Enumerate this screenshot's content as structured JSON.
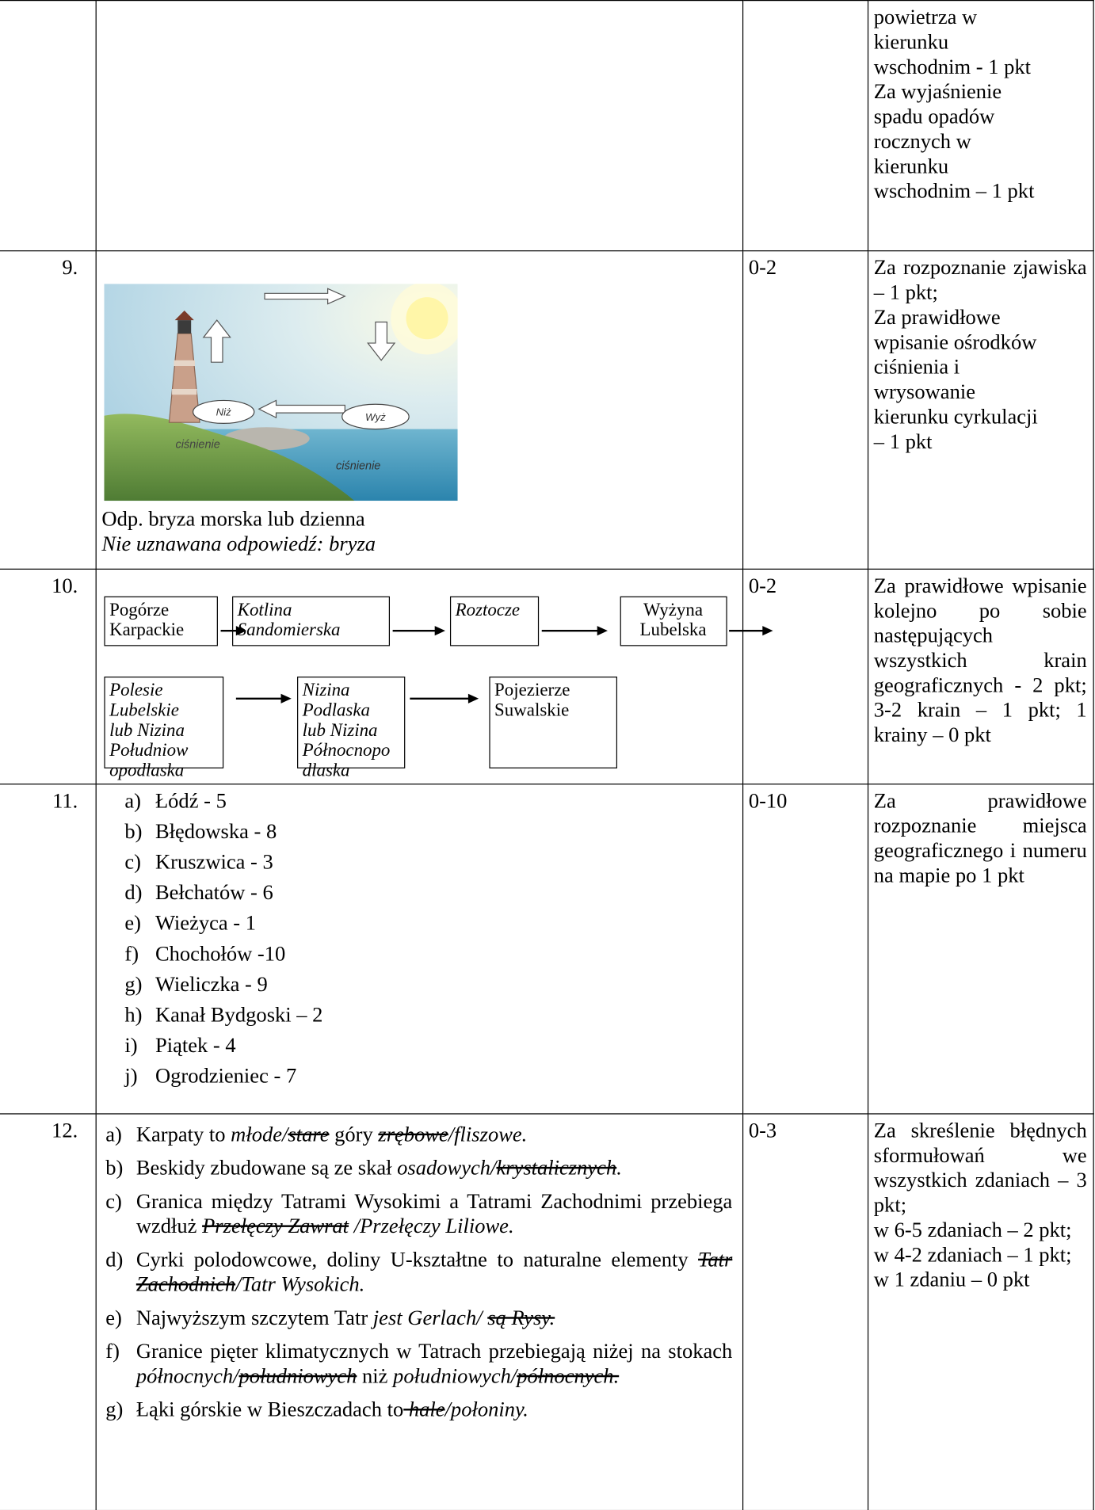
{
  "table": {
    "rows": [
      {
        "criteria": [
          "powietrza w",
          "kierunku",
          "wschodnim - 1 pkt",
          "Za wyjaśnienie",
          "spadu opadów",
          "rocznych w",
          "kierunku",
          "wschodnim – 1 pkt"
        ]
      },
      {
        "number": "9.",
        "figure": {
          "low": "Niż",
          "high": "Wyż",
          "pressure_left": "ciśnienie",
          "pressure_right": "ciśnienie"
        },
        "answer": "Odp. bryza morska lub dzienna",
        "note": "Nie uznawana odpowiedź: bryza",
        "points": "0-2",
        "criteria": [
          "Za rozpoznanie zjawiska – 1 pkt;",
          "Za prawidłowe",
          "wpisanie ośrodków",
          "ciśnienia  i",
          "wrysowanie",
          "kierunku cyrkulacji",
          "– 1 pkt"
        ]
      },
      {
        "number": "10.",
        "flow": [
          {
            "lines": [
              "Pogórze",
              "Karpackie"
            ],
            "italic": false
          },
          {
            "lines": [
              "Kotlina",
              "Sandomierska"
            ],
            "italic": true
          },
          {
            "lines": [
              "Roztocze"
            ],
            "italic": true
          },
          {
            "lines": [
              "Wyżyna",
              "Lubelska"
            ],
            "italic": false
          },
          {
            "lines": [
              "Polesie",
              "Lubelskie",
              "lub Nizina",
              "Południow",
              "opodlaska"
            ],
            "italic": true
          },
          {
            "lines": [
              "Nizina",
              "Podlaska",
              "lub Nizina",
              "Północnopo",
              "dlaska"
            ],
            "italic": true
          },
          {
            "lines": [
              "Pojezierze",
              "Suwalskie"
            ],
            "italic": false
          }
        ],
        "points": "0-2",
        "criteria": [
          "Za prawidłowe wpisanie kolejno po sobie następujących wszystkich krain geograficznych - 2 pkt; 3-2 krain – 1 pkt; 1 krainy – 0 pkt"
        ]
      },
      {
        "number": "11.",
        "list": [
          {
            "letter": "a)",
            "text": "Łódź - 5"
          },
          {
            "letter": "b)",
            "text": "Błędowska - 8"
          },
          {
            "letter": "c)",
            "text": "Kruszwica - 3"
          },
          {
            "letter": "d)",
            "text": "Bełchatów - 6"
          },
          {
            "letter": "e)",
            "text": "Wieżyca - 1"
          },
          {
            "letter": "f)",
            "text": "Chochołów -10"
          },
          {
            "letter": "g)",
            "text": "Wieliczka - 9"
          },
          {
            "letter": "h)",
            "text": "Kanał Bydgoski – 2"
          },
          {
            "letter": "i)",
            "text": "Piątek - 4"
          },
          {
            "letter": "j)",
            "text": "Ogrodzieniec - 7"
          }
        ],
        "points": "0-10",
        "criteria": [
          "Za prawidłowe rozpoznanie miejsca geograficznego i numeru na mapie po 1 pkt"
        ]
      },
      {
        "number": "12.",
        "statements": [
          {
            "letter": "a)",
            "parts": [
              {
                "text": "Karpaty to ",
                "style": "normal"
              },
              {
                "text": "młode/",
                "style": "italic"
              },
              {
                "text": "stare",
                "style": "struck"
              },
              {
                "text": " góry ",
                "style": "normal"
              },
              {
                "text": "zrębowe",
                "style": "struck"
              },
              {
                "text": "/fliszowe.",
                "style": "italic"
              }
            ]
          },
          {
            "letter": "b)",
            "parts": [
              {
                "text": "Beskidy zbudowane są ze skał ",
                "style": "normal"
              },
              {
                "text": "osadowych/",
                "style": "italic"
              },
              {
                "text": "krystalicznych",
                "style": "struck"
              },
              {
                "text": ".",
                "style": "italic"
              }
            ]
          },
          {
            "letter": "c)",
            "parts": [
              {
                "text": "Granica między Tatrami Wysokimi a Tatrami Zachodnimi przebiega wzdłuż ",
                "style": "normal"
              },
              {
                "text": "Przełęczy Zawrat",
                "style": "struck"
              },
              {
                "text": " /Przełęczy Liliowe.",
                "style": "italic"
              }
            ]
          },
          {
            "letter": "d)",
            "parts": [
              {
                "text": "Cyrki polodowcowe, doliny U-kształtne to naturalne elementy ",
                "style": "normal"
              },
              {
                "text": "Tatr Zachodnich",
                "style": "struck"
              },
              {
                "text": "/Tatr Wysokich.",
                "style": "italic"
              }
            ]
          },
          {
            "letter": "e)",
            "parts": [
              {
                "text": "Najwyższym szczytem Tatr ",
                "style": "normal"
              },
              {
                "text": "jest Gerlach/ ",
                "style": "italic"
              },
              {
                "text": "są Rysy.",
                "style": "struck"
              }
            ]
          },
          {
            "letter": "f)",
            "parts": [
              {
                "text": "Granice pięter klimatycznych w Tatrach przebiegają niżej na stokach ",
                "style": "normal"
              },
              {
                "text": "północnych/",
                "style": "italic"
              },
              {
                "text": "południowych",
                "style": "struck"
              },
              {
                "text": " niż ",
                "style": "normal"
              },
              {
                "text": "południowych/",
                "style": "italic"
              },
              {
                "text": "północnych.",
                "style": "struck"
              }
            ]
          },
          {
            "letter": "g)",
            "parts": [
              {
                "text": "Łąki górskie w Bieszczadach to",
                "style": "normal"
              },
              {
                "text": " hale",
                "style": "struck"
              },
              {
                "text": "/połoniny.",
                "style": "italic"
              }
            ]
          }
        ],
        "points": "0-3",
        "criteria": [
          "Za skreślenie błędnych sformułowań we wszystkich zdaniach – 3 pkt;",
          "w 6-5 zdaniach – 2 pkt;",
          "w 4-2 zdaniach – 1 pkt;",
          "w 1 zdaniu – 0 pkt"
        ]
      }
    ]
  }
}
